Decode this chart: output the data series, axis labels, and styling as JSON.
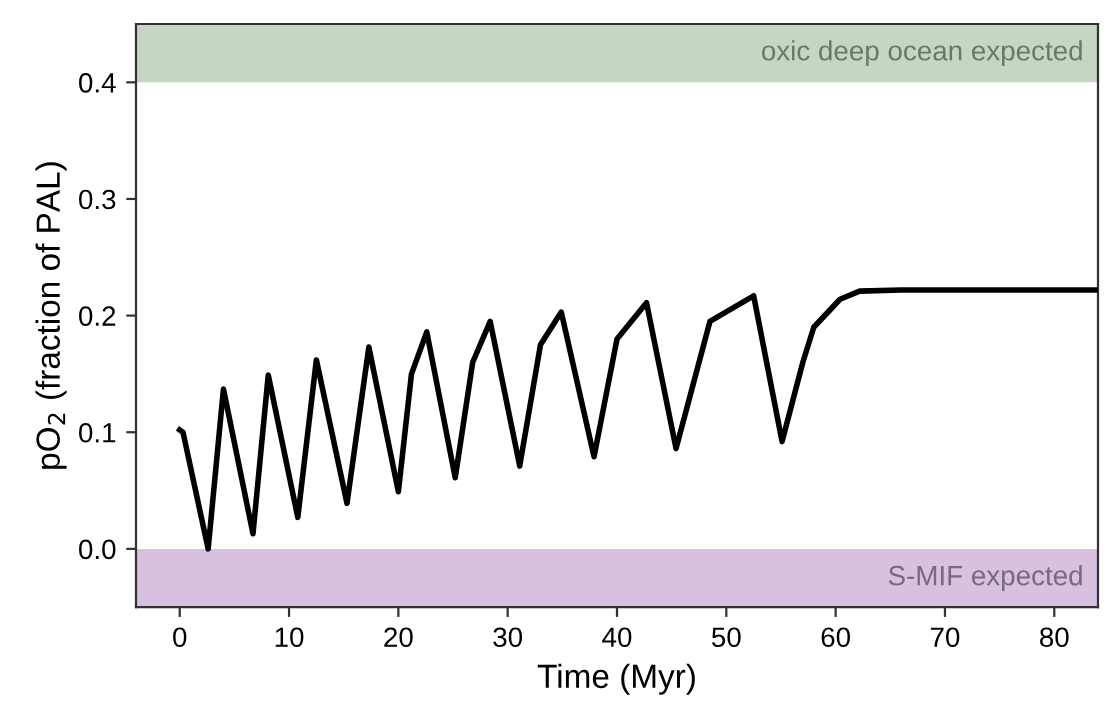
{
  "chart_data": {
    "type": "line",
    "xlabel": "Time (Myr)",
    "ylabel": "pO$_{2}$ (fraction of PAL)",
    "x": [
      0,
      0.3,
      2.6,
      4.0,
      6.7,
      8.1,
      10.8,
      12.5,
      15.3,
      17.3,
      20.0,
      21.2,
      22.6,
      25.2,
      26.8,
      28.4,
      31.1,
      33.0,
      34.9,
      37.9,
      40.0,
      42.7,
      45.4,
      48.5,
      52.5,
      55.1,
      57.0,
      58.0,
      60.4,
      62.2,
      66,
      84
    ],
    "series": [
      {
        "color": "#000000",
        "values": [
          0.102,
          0.1,
          0.0,
          0.137,
          0.013,
          0.149,
          0.027,
          0.162,
          0.039,
          0.173,
          0.049,
          0.15,
          0.186,
          0.061,
          0.16,
          0.195,
          0.071,
          0.175,
          0.203,
          0.079,
          0.18,
          0.211,
          0.086,
          0.195,
          0.217,
          0.092,
          0.16,
          0.19,
          0.214,
          0.221,
          0.222,
          0.222
        ]
      }
    ],
    "xlim": [
      -4,
      84
    ],
    "ylim": [
      -0.05,
      0.45
    ],
    "xticks": [
      0,
      10,
      20,
      30,
      40,
      50,
      60,
      70,
      80
    ],
    "yticks": [
      {
        "value": 0.0,
        "label": "0.0"
      },
      {
        "value": 0.1,
        "label": "0.1"
      },
      {
        "value": 0.2,
        "label": "0.2"
      },
      {
        "value": 0.3,
        "label": "0.3"
      },
      {
        "value": 0.4,
        "label": "0.4"
      }
    ],
    "bands": [
      {
        "axis": "y",
        "from": 0.4,
        "to": 0.45,
        "label": "oxic deep ocean expected",
        "color": "#c5d6c3"
      },
      {
        "axis": "y",
        "from": -0.05,
        "to": 0.0,
        "label": "S-MIF expected",
        "color": "#d7c0e0"
      }
    ],
    "grid": false,
    "legend": false,
    "marker": "none",
    "line_style": "solid"
  }
}
